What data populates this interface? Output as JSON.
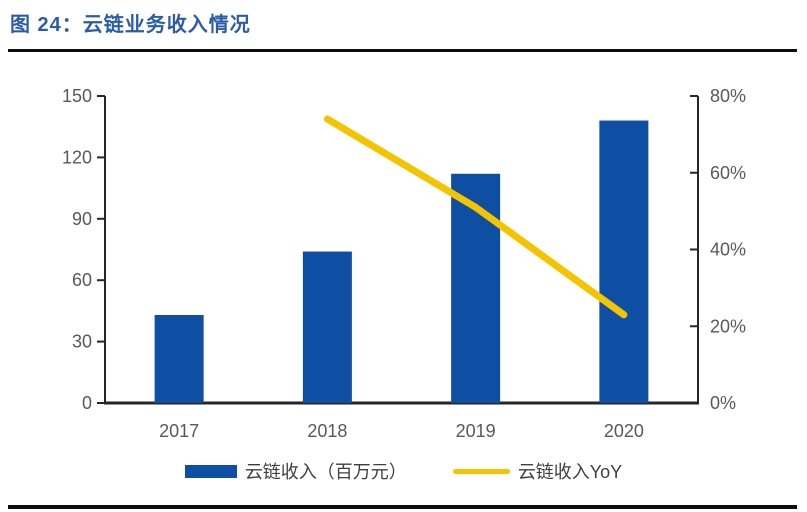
{
  "figure": {
    "title": "图 24：云链业务收入情况"
  },
  "chart_data": {
    "type": "bar",
    "subtype": "bar-with-line-overlay",
    "title": "云链业务收入情况",
    "categories": [
      "2017",
      "2018",
      "2019",
      "2020"
    ],
    "series": [
      {
        "name": "云链收入（百万元）",
        "type": "bar",
        "axis": "left",
        "values": [
          43,
          74,
          112,
          138
        ],
        "color": "#0E4EA3"
      },
      {
        "name": "云链收入YoY",
        "type": "line",
        "axis": "right",
        "values": [
          null,
          74,
          51,
          23
        ],
        "unit": "%",
        "color": "#F4C400"
      }
    ],
    "left_axis": {
      "min": 0,
      "max": 150,
      "tick_values": [
        0,
        30,
        60,
        90,
        120,
        150
      ],
      "tick_labels": [
        "0",
        "30",
        "60",
        "90",
        "120",
        "150"
      ]
    },
    "right_axis": {
      "min": 0,
      "max": 80,
      "tick_values": [
        0,
        20,
        40,
        60,
        80
      ],
      "tick_labels": [
        "0%",
        "20%",
        "40%",
        "60%",
        "80%"
      ]
    },
    "xlabel": "",
    "ylabel": "",
    "grid": false,
    "legend_position": "bottom"
  },
  "colors": {
    "bar": "#0E4EA3",
    "line": "#F4C400",
    "title": "#2B5CA8",
    "axis_line": "#262626",
    "tick_label": "#595959",
    "legend_text": "#3f3f3f",
    "rule": "#0d0d0d"
  }
}
